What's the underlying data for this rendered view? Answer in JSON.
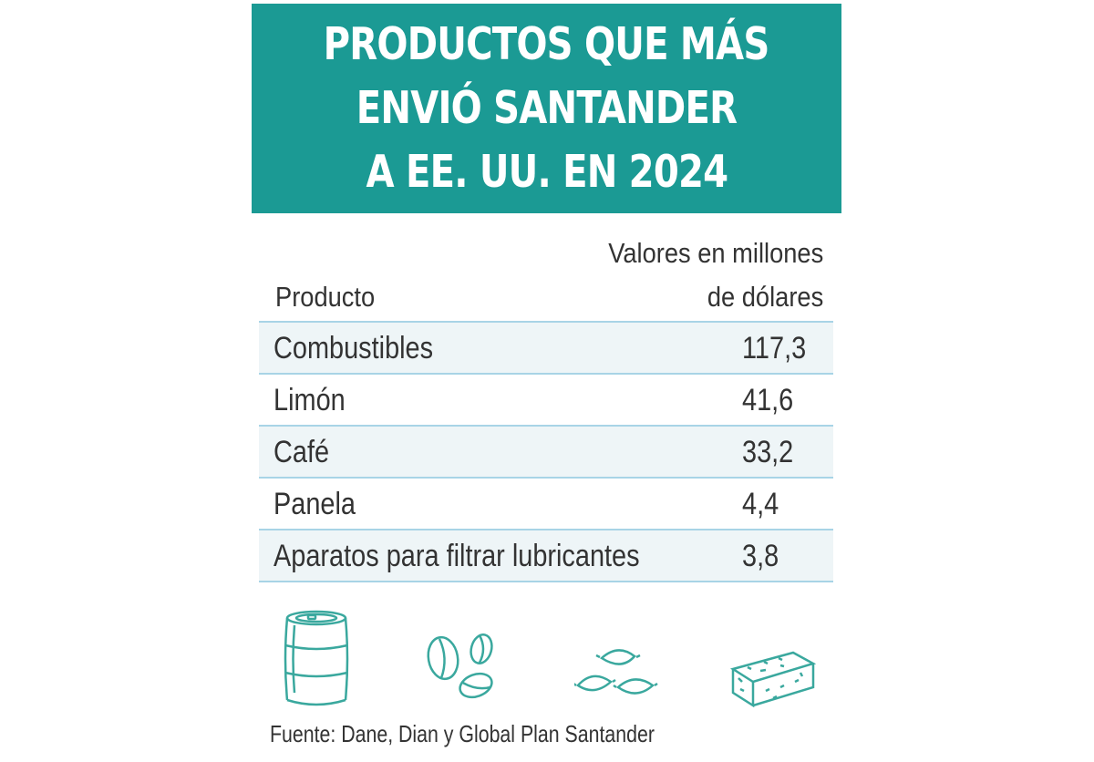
{
  "title_lines": [
    "PRODUCTOS QUE MÁS",
    "ENVIÓ SANTANDER",
    "A EE. UU. EN 2024"
  ],
  "headers": {
    "product": "Producto",
    "value_line1": "Valores en millones",
    "value_line2": "de dólares"
  },
  "colors": {
    "title_bg": "#1b9a94",
    "row_shade": "#eef5f7",
    "rule": "#a8d4e6",
    "icon_stroke": "#3aa89e"
  },
  "chart_data": {
    "type": "table",
    "columns": [
      "Producto",
      "Valores en millones de dólares"
    ],
    "rows": [
      {
        "product": "Combustibles",
        "value": "117,3"
      },
      {
        "product": "Limón",
        "value": "41,6"
      },
      {
        "product": "Café",
        "value": "33,2"
      },
      {
        "product": "Panela",
        "value": "4,4"
      },
      {
        "product": "Aparatos para filtrar lubricantes",
        "value": "3,8"
      }
    ]
  },
  "icons": [
    "barrel-icon",
    "coffee-beans-icon",
    "lemons-icon",
    "panela-block-icon"
  ],
  "source": "Fuente: Dane, Dian y Global Plan Santander"
}
